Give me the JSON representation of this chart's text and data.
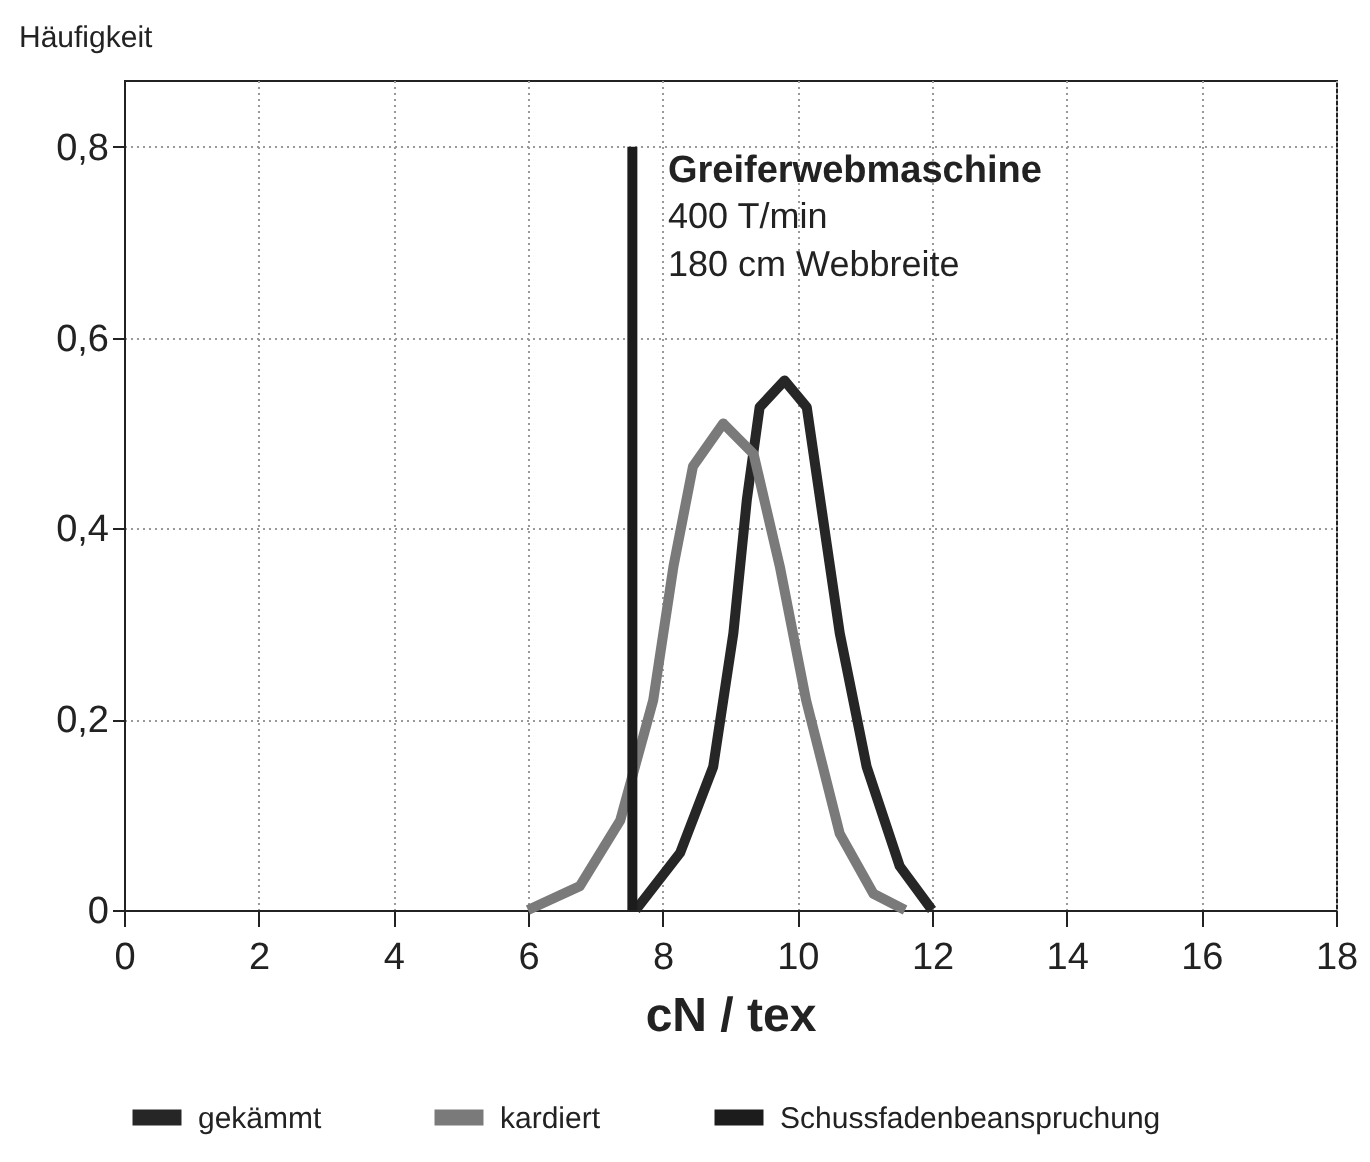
{
  "chart_data": {
    "type": "line",
    "xlabel": "cN / tex",
    "ylabel": "Häufigkeit",
    "annotations": [
      "Greiferwebmaschine",
      "400 T/min",
      "180 cm Webbreite"
    ],
    "xlim": [
      0,
      18
    ],
    "ylim": [
      0,
      0.87
    ],
    "xticks": [
      0,
      2,
      4,
      6,
      8,
      10,
      12,
      14,
      16,
      18
    ],
    "yticks": [
      0,
      {
        "value": 0.2,
        "label": "0,2"
      },
      {
        "value": 0.4,
        "label": "0,4"
      },
      {
        "value": 0.6,
        "label": "0,6"
      },
      {
        "value": 0.8,
        "label": "0,8"
      }
    ],
    "grid": true,
    "legend": "bottom",
    "marker": "none",
    "line_style": "solid",
    "series": [
      {
        "name": "gekämmt",
        "color": "#262626",
        "x": [
          7.6,
          8.26,
          8.75,
          9.05,
          9.25,
          9.44,
          9.81,
          10.14,
          10.34,
          10.63,
          11.03,
          11.52,
          12.0
        ],
        "values": [
          0,
          0.06,
          0.15,
          0.29,
          0.43,
          0.527,
          0.555,
          0.527,
          0.43,
          0.29,
          0.15,
          0.046,
          0
        ]
      },
      {
        "name": "kardiert",
        "color": "#7a7a7a",
        "x": [
          6.0,
          6.77,
          7.37,
          7.86,
          8.16,
          8.45,
          8.9,
          9.35,
          9.74,
          10.13,
          10.63,
          11.13,
          11.6
        ],
        "values": [
          0,
          0.025,
          0.094,
          0.22,
          0.36,
          0.465,
          0.51,
          0.478,
          0.36,
          0.22,
          0.08,
          0.017,
          0
        ]
      },
      {
        "name": "Schussfadenbeanspruchung",
        "color": "#1c1c1c",
        "x": [
          7.55,
          7.55
        ],
        "values": [
          0,
          0.8
        ]
      }
    ]
  }
}
